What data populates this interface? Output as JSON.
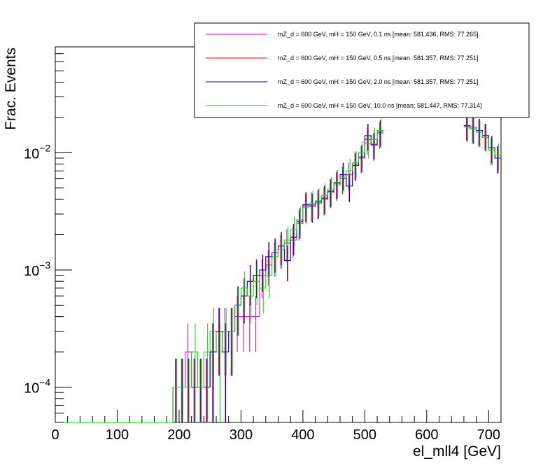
{
  "chart_data": {
    "type": "line",
    "title": "",
    "xlabel": "el_mll4 [GeV]",
    "ylabel": "Frac. Events",
    "xlim": [
      0,
      720
    ],
    "ylim": [
      5e-05,
      0.08
    ],
    "yscale": "log",
    "x_ticks": [
      0,
      100,
      200,
      300,
      400,
      500,
      600,
      700
    ],
    "x_tick_labels": [
      "0",
      "100",
      "200",
      "300",
      "400",
      "500",
      "600",
      "700"
    ],
    "y_ticks": [
      0.0001,
      0.001,
      0.01
    ],
    "y_tick_labels": [
      {
        "base": "10",
        "exp": "−4"
      },
      {
        "base": "10",
        "exp": "−3"
      },
      {
        "base": "10",
        "exp": "−2"
      }
    ],
    "legend_position": "top-right",
    "bin_edges_step": 10,
    "x": [
      195,
      205,
      215,
      225,
      235,
      245,
      255,
      265,
      275,
      285,
      295,
      305,
      315,
      325,
      335,
      345,
      355,
      365,
      375,
      385,
      395,
      405,
      415,
      425,
      435,
      445,
      455,
      465,
      475,
      485,
      495,
      505,
      515,
      525,
      665,
      675,
      685,
      695,
      705,
      715
    ],
    "series": [
      {
        "name": "mZ_d = 600 GeV, mH = 150 GeV, 0.1 ns [mean: 581.436, RMS: 77.265]",
        "color": "#cc00cc",
        "values": [
          0.0001,
          0.0001,
          0.0002,
          0.0001,
          0.0001,
          0.0001,
          0.0002,
          0.0003,
          0.0003,
          0.0003,
          0.0004,
          0.0004,
          0.0004,
          0.0004,
          0.0009,
          0.0011,
          0.0013,
          0.0015,
          0.0017,
          0.0018,
          0.0025,
          0.0035,
          0.0036,
          0.0037,
          0.004,
          0.0046,
          0.0053,
          0.006,
          0.0065,
          0.008,
          0.009,
          0.013,
          0.0115,
          0.0145,
          0.017,
          0.0165,
          0.015,
          0.014,
          0.0105,
          0.009
        ]
      },
      {
        "name": "mZ_d = 600 GeV, mH = 150 GeV, 0.5 ns [mean: 581.357, RMS: 77.251]",
        "color": "#ff0000",
        "values": [
          0.0001,
          0.0001,
          0.0001,
          0.0001,
          0.0001,
          0.0001,
          0.0002,
          0.0003,
          0.0002,
          0.0003,
          0.0005,
          0.0006,
          0.0008,
          0.0009,
          0.001,
          0.0013,
          0.0014,
          0.0016,
          0.0012,
          0.0019,
          0.0026,
          0.0036,
          0.0035,
          0.0038,
          0.0041,
          0.0047,
          0.0055,
          0.0065,
          0.0052,
          0.0078,
          0.0092,
          0.014,
          0.0118,
          0.015,
          0.017,
          0.016,
          0.0155,
          0.014,
          0.011,
          0.009
        ]
      },
      {
        "name": "mZ_d = 600 GeV, mH = 150 GeV, 2.0 ns [mean: 581.357, RMS: 77.251]",
        "color": "#0000cc",
        "values": [
          0.0001,
          0.0001,
          0.0001,
          0.0001,
          0.0001,
          0.0001,
          0.0002,
          0.0003,
          0.0002,
          0.0003,
          0.0005,
          0.0006,
          0.0008,
          0.0009,
          0.001,
          0.0013,
          0.0014,
          0.0016,
          0.0012,
          0.0019,
          0.0026,
          0.0036,
          0.0035,
          0.0038,
          0.0041,
          0.0047,
          0.0055,
          0.0065,
          0.0052,
          0.0078,
          0.0092,
          0.014,
          0.0118,
          0.015,
          0.017,
          0.016,
          0.0155,
          0.014,
          0.011,
          0.009
        ]
      },
      {
        "name": "mZ_d = 600 GeV, mH = 150 GeV, 10.0 ns [mean: 581.447, RMS: 77.314]",
        "color": "#00dd00",
        "values": [
          0.0001,
          0.0001,
          0.0001,
          0.0002,
          0.0001,
          0.0002,
          0.0003,
          0.0002,
          0.0003,
          0.0003,
          0.0005,
          0.0007,
          0.0006,
          0.0008,
          0.0007,
          0.0009,
          0.0013,
          0.0015,
          0.0018,
          0.0022,
          0.0027,
          0.0034,
          0.0037,
          0.0039,
          0.0043,
          0.0049,
          0.0056,
          0.0062,
          0.007,
          0.0082,
          0.01,
          0.012,
          0.013,
          0.0155,
          0.0165,
          0.016,
          0.015,
          0.0135,
          0.0105,
          0.0095
        ]
      }
    ]
  }
}
